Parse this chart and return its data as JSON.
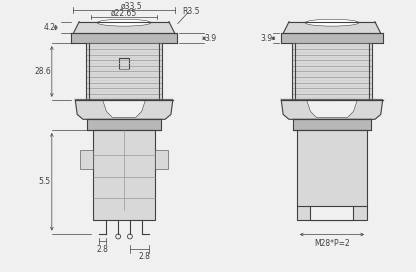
{
  "bg_color": "#f0f0f0",
  "line_color": "#404040",
  "light_gray": "#d8d8d8",
  "mid_gray": "#b8b8b8",
  "dark_gray": "#888888",
  "annotations": {
    "d33_5": "ø33.5",
    "d22_65": "ø22.65",
    "r3_5": "R3.5",
    "dim_4_2": "4.2",
    "dim_3_9": "3.9",
    "dim_28_6": "28.6",
    "dim_5_5": "5.5",
    "dim_2_8_left": "2.8",
    "dim_2_8_right": "2.8",
    "thread_label": "M28*P=2"
  },
  "font_size": 5.5
}
